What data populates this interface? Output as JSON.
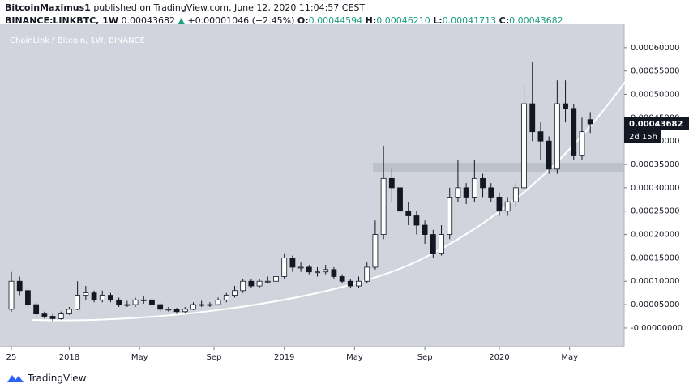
{
  "header": {
    "author": "BitcoinMaximus1",
    "published": "published on TradingView.com, June 12, 2020 11:04:57 CEST",
    "symbol": "BINANCE:LINKBTC, 1W",
    "last": "0.00043682",
    "arrow": "▲",
    "change": "+0.00001046 (+2.45%)",
    "o_label": "O:",
    "o": "0.00044594",
    "h_label": "H:",
    "h": "0.00046210",
    "l_label": "L:",
    "l": "0.00041713",
    "c_label": "C:",
    "c": "0.00043682"
  },
  "footer": {
    "brand": "TradingView"
  },
  "chart_data": {
    "type": "candlestick",
    "title": "ChainLink / Bitcoin, 1W, BINANCE",
    "countdown": "2d 15h",
    "up_color": "#ffffff",
    "down_color": "#131722",
    "background": "#d1d4dc",
    "xlim": [
      -2.75,
      148.2
    ],
    "xticks": [
      {
        "value": 0,
        "label": "25"
      },
      {
        "value": 14,
        "label": "2018"
      },
      {
        "value": 31,
        "label": "May"
      },
      {
        "value": 49,
        "label": "Sep"
      },
      {
        "value": 66,
        "label": "2019"
      },
      {
        "value": 83,
        "label": "May"
      },
      {
        "value": 100,
        "label": "Sep"
      },
      {
        "value": 118,
        "label": "2020"
      },
      {
        "value": 135,
        "label": "May"
      }
    ],
    "ylim": [
      -4e-05,
      0.00065
    ],
    "yticks": [
      {
        "value": 0,
        "label": "-0.00000000"
      },
      {
        "value": 5e-05,
        "label": "0.00005000"
      },
      {
        "value": 0.0001,
        "label": "0.00010000"
      },
      {
        "value": 0.00015,
        "label": "0.00015000"
      },
      {
        "value": 0.0002,
        "label": "0.00020000"
      },
      {
        "value": 0.00025,
        "label": "0.00025000"
      },
      {
        "value": 0.0003,
        "label": "0.00030000"
      },
      {
        "value": 0.00035,
        "label": "0.00035000"
      },
      {
        "value": 0.0004,
        "label": "0.00040000"
      },
      {
        "value": 0.00045,
        "label": "0.00045000"
      },
      {
        "value": 0.0005,
        "label": "0.00050000"
      },
      {
        "value": 0.00055,
        "label": "0.00055000"
      },
      {
        "value": 0.0006,
        "label": "0.00060000"
      }
    ],
    "x": [
      0,
      2,
      4,
      6,
      8,
      10,
      12,
      14,
      16,
      18,
      20,
      22,
      24,
      26,
      28,
      30,
      32,
      34,
      36,
      38,
      40,
      42,
      44,
      46,
      48,
      50,
      52,
      54,
      56,
      58,
      60,
      62,
      64,
      66,
      68,
      70,
      72,
      74,
      76,
      78,
      80,
      82,
      84,
      86,
      88,
      90,
      92,
      94,
      96,
      98,
      100,
      102,
      104,
      106,
      108,
      110,
      112,
      114,
      116,
      118,
      120,
      122,
      124,
      126,
      128,
      130,
      132,
      134,
      136,
      138,
      140
    ],
    "open": [
      4e-05,
      0.0001,
      8e-05,
      5e-05,
      3e-05,
      2.5e-05,
      2e-05,
      3e-05,
      4e-05,
      7e-05,
      7.5e-05,
      6e-05,
      7e-05,
      6e-05,
      5e-05,
      5e-05,
      6e-05,
      6e-05,
      5e-05,
      4e-05,
      4e-05,
      3.5e-05,
      4e-05,
      5e-05,
      5e-05,
      5e-05,
      6e-05,
      7e-05,
      8e-05,
      0.0001,
      9e-05,
      0.0001,
      0.0001,
      0.00011,
      0.00015,
      0.00013,
      0.00013,
      0.00012,
      0.00012,
      0.000125,
      0.00011,
      0.0001,
      9e-05,
      0.0001,
      0.00013,
      0.0002,
      0.00032,
      0.0003,
      0.00025,
      0.00024,
      0.00022,
      0.0002,
      0.00016,
      0.0002,
      0.00028,
      0.0003,
      0.00028,
      0.00032,
      0.0003,
      0.00028,
      0.00025,
      0.00027,
      0.0003,
      0.00048,
      0.00042,
      0.0004,
      0.00034,
      0.00048,
      0.00047,
      0.00037,
      0.00044594
    ],
    "high": [
      0.00012,
      0.00011,
      8.5e-05,
      5.5e-05,
      3.5e-05,
      3e-05,
      3.5e-05,
      4.5e-05,
      0.0001,
      9e-05,
      8e-05,
      8e-05,
      7.5e-05,
      6.5e-05,
      5.8e-05,
      6.5e-05,
      6.8e-05,
      6.5e-05,
      5.3e-05,
      4.5e-05,
      4.3e-05,
      4.5e-05,
      5.5e-05,
      5.8e-05,
      5.5e-05,
      6.5e-05,
      7.5e-05,
      9e-05,
      0.000105,
      0.000105,
      0.000105,
      0.00011,
      0.00012,
      0.00016,
      0.000155,
      0.00014,
      0.000135,
      0.00013,
      0.000135,
      0.00013,
      0.000115,
      0.000105,
      0.00011,
      0.00014,
      0.00023,
      0.00039,
      0.00034,
      0.00031,
      0.00027,
      0.00025,
      0.00023,
      0.00021,
      0.00022,
      0.0003,
      0.00036,
      0.00031,
      0.00036,
      0.00033,
      0.00031,
      0.00029,
      0.00028,
      0.00031,
      0.00052,
      0.00057,
      0.00044,
      0.00041,
      0.00053,
      0.00053,
      0.00048,
      0.00045,
      0.0004621
    ],
    "low": [
      3.5e-05,
      7e-05,
      4.5e-05,
      2.5e-05,
      2e-05,
      1.5e-05,
      1.8e-05,
      2.8e-05,
      3.8e-05,
      6e-05,
      5.5e-05,
      5.5e-05,
      5.5e-05,
      4.5e-05,
      4.5e-05,
      4.5e-05,
      5.2e-05,
      4.5e-05,
      3.5e-05,
      3.5e-05,
      3e-05,
      3.2e-05,
      3.8e-05,
      4.5e-05,
      4.5e-05,
      4.8e-05,
      5.5e-05,
      6.5e-05,
      7.5e-05,
      8.5e-05,
      8.5e-05,
      9.5e-05,
      9.5e-05,
      0.000105,
      0.00012,
      0.00012,
      0.000115,
      0.00011,
      0.000115,
      0.000105,
      9.5e-05,
      8.5e-05,
      8.5e-05,
      9.5e-05,
      0.000125,
      0.00019,
      0.00027,
      0.00023,
      0.00022,
      0.0002,
      0.00018,
      0.00015,
      0.000155,
      0.00019,
      0.00027,
      0.000265,
      0.00027,
      0.00028,
      0.00027,
      0.00024,
      0.00024,
      0.00026,
      0.00029,
      0.0004,
      0.00036,
      0.00033,
      0.00033,
      0.00044,
      0.00036,
      0.00036,
      0.00041713
    ],
    "close": [
      0.0001,
      8e-05,
      5e-05,
      3e-05,
      2.5e-05,
      2e-05,
      3e-05,
      4e-05,
      7e-05,
      7.5e-05,
      6e-05,
      7e-05,
      6e-05,
      5e-05,
      5e-05,
      6e-05,
      6e-05,
      5e-05,
      4e-05,
      4e-05,
      3.5e-05,
      4e-05,
      5e-05,
      5e-05,
      5e-05,
      6e-05,
      7e-05,
      8e-05,
      0.0001,
      9e-05,
      0.0001,
      0.0001,
      0.00011,
      0.00015,
      0.00013,
      0.00013,
      0.00012,
      0.00012,
      0.000125,
      0.00011,
      0.0001,
      9e-05,
      0.0001,
      0.00013,
      0.0002,
      0.00032,
      0.0003,
      0.00025,
      0.00024,
      0.00022,
      0.0002,
      0.00016,
      0.0002,
      0.00028,
      0.0003,
      0.00028,
      0.00032,
      0.0003,
      0.00028,
      0.00025,
      0.00027,
      0.0003,
      0.00048,
      0.00042,
      0.0004,
      0.00034,
      0.00048,
      0.00047,
      0.00037,
      0.00042,
      0.00043682
    ]
  }
}
